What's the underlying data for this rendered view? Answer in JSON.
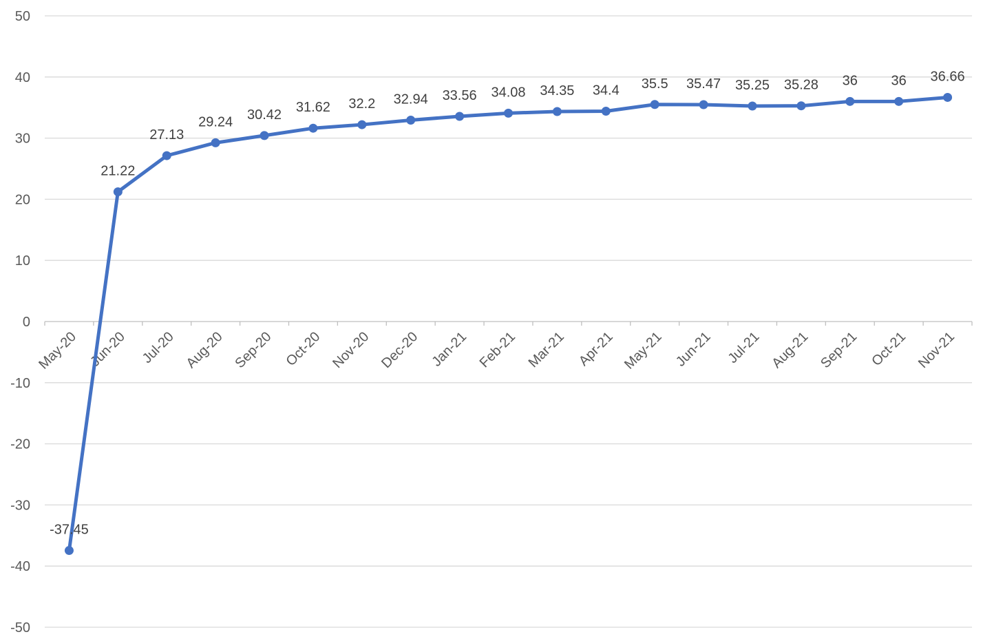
{
  "chart_data": {
    "type": "line",
    "title": "",
    "xlabel": "",
    "ylabel": "",
    "categories": [
      "May-20",
      "Jun-20",
      "Jul-20",
      "Aug-20",
      "Sep-20",
      "Oct-20",
      "Nov-20",
      "Dec-20",
      "Jan-21",
      "Feb-21",
      "Mar-21",
      "Apr-21",
      "May-21",
      "Jun-21",
      "Jul-21",
      "Aug-21",
      "Sep-21",
      "Oct-21",
      "Nov-21"
    ],
    "series": [
      {
        "name": "",
        "values": [
          -37.45,
          21.22,
          27.13,
          29.24,
          30.42,
          31.62,
          32.2,
          32.94,
          33.56,
          34.08,
          34.35,
          34.4,
          35.5,
          35.47,
          35.25,
          35.28,
          36,
          36,
          36.66
        ],
        "data_labels": [
          "-37.45",
          "21.22",
          "27.13",
          "29.24",
          "30.42",
          "31.62",
          "32.2",
          "32.94",
          "33.56",
          "34.08",
          "34.35",
          "34.4",
          "35.5",
          "35.47",
          "35.25",
          "35.28",
          "36",
          "36",
          "36.66"
        ]
      }
    ],
    "ylim": [
      -50,
      50
    ],
    "yticks": [
      50,
      40,
      30,
      20,
      10,
      0,
      -10,
      -20,
      -30,
      -40,
      -50
    ],
    "ytick_step": 10,
    "x_axis_position": "zero-line",
    "x_label_rotation_deg": -45,
    "grid": true,
    "legend": "none",
    "marker": "circle",
    "data_label_position": "above",
    "colors": {
      "line": "#4472C4",
      "marker": "#4472C4",
      "gridline": "#D9D9D9",
      "axis_line": "#BFBFBF",
      "axis_label": "#595959",
      "data_label": "#404040",
      "background": "#FFFFFF"
    }
  }
}
